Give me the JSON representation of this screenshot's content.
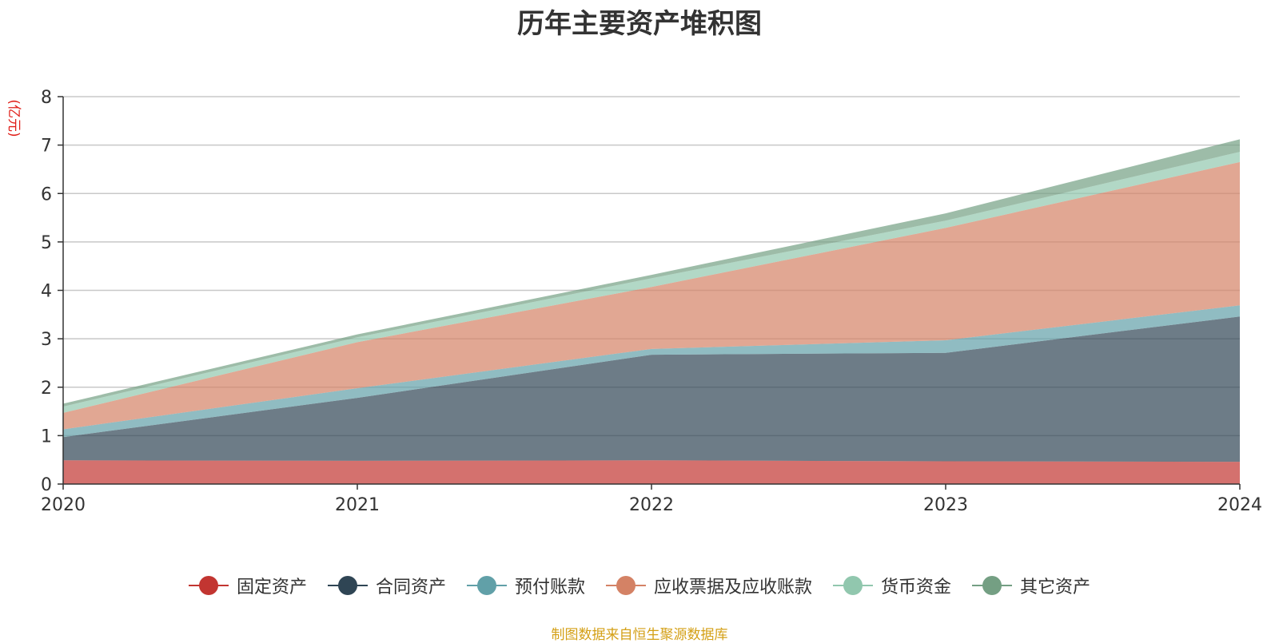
{
  "title": "历年主要资产堆积图",
  "source": "制图数据来自恒生聚源数据库",
  "chart_data": {
    "type": "area",
    "stacked": true,
    "title": "历年主要资产堆积图",
    "unit_label": "(亿元)",
    "x": [
      "2020",
      "2021",
      "2022",
      "2023",
      "2024"
    ],
    "ylim": [
      0,
      8
    ],
    "yticks": [
      "0",
      "1",
      "2",
      "3",
      "4",
      "5",
      "6",
      "7",
      "8"
    ],
    "grid": true,
    "legend_position": "bottom",
    "series": [
      {
        "name": "固定资产",
        "color": "#c23531",
        "values": [
          0.49,
          0.48,
          0.49,
          0.47,
          0.46
        ]
      },
      {
        "name": "合同资产",
        "color": "#2f4554",
        "values": [
          0.48,
          1.3,
          2.18,
          2.24,
          3.0
        ]
      },
      {
        "name": "预付账款",
        "color": "#61a0a8",
        "values": [
          0.16,
          0.2,
          0.12,
          0.26,
          0.23
        ]
      },
      {
        "name": "应收票据及应收账款",
        "color": "#d48265",
        "values": [
          0.34,
          0.95,
          1.28,
          2.32,
          2.96
        ]
      },
      {
        "name": "货币资金",
        "color": "#91c7ae",
        "values": [
          0.13,
          0.1,
          0.18,
          0.15,
          0.21
        ]
      },
      {
        "name": "其它资产",
        "color": "#749f83",
        "values": [
          0.06,
          0.06,
          0.07,
          0.15,
          0.26
        ]
      }
    ]
  }
}
